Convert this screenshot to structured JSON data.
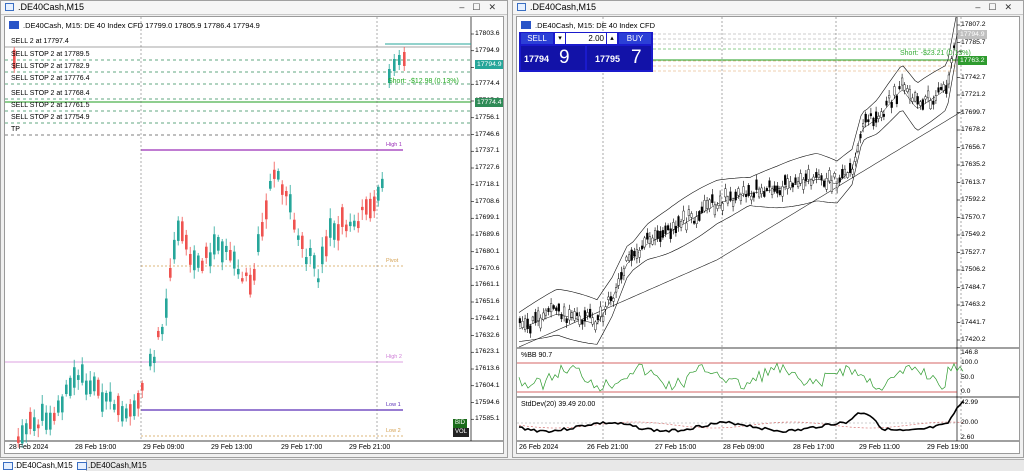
{
  "left": {
    "title": ".DE40Cash,M15",
    "header": ".DE40Cash, M15:  DE 40 Index CFD   17799.0 17805.9 17786.4 17794.9",
    "levels": [
      "SELL 2 at 17797.4",
      "SELL STOP 2 at 17789.5",
      "SELL STOP 2 at 17782.9",
      "SELL STOP 2 at 17776.4",
      "SELL STOP 2 at 17768.4",
      "SELL STOP 2 at 17761.5",
      "SELL STOP 2 at 17754.9",
      "TP"
    ],
    "prices": [
      "17803.6",
      "17794.9",
      "17784.6",
      "17774.4",
      "17765.6",
      "17756.1",
      "17746.6",
      "17737.1",
      "17727.6",
      "17718.1",
      "17708.6",
      "17699.1",
      "17689.6",
      "17680.1",
      "17670.6",
      "17661.1",
      "17651.6",
      "17642.1",
      "17632.6",
      "17623.1",
      "17613.6",
      "17604.1",
      "17594.6",
      "17585.1"
    ],
    "current_price": "17794.9",
    "position_price": "17774.4",
    "short_text": "Short: -$12.98 (0.13%)",
    "dates": [
      "28 Feb 2024",
      "28 Feb 19:00",
      "29 Feb 09:00",
      "29 Feb 13:00",
      "29 Feb 17:00",
      "29 Feb 21:00"
    ],
    "pivot_labels": [
      "High 1",
      "Pivot",
      "High 2",
      "Low 1",
      "Low 2"
    ],
    "chip_top": "BID",
    "chip_bottom": "VOL",
    "colors": {
      "bull": "#26a69a",
      "bear": "#ef5350"
    }
  },
  "right": {
    "title": ".DE40Cash,M15",
    "header": ".DE40Cash, M15:  DE 40 Index CFD",
    "trade": {
      "sell_label": "SELL",
      "buy_label": "BUY",
      "lots": "2.00",
      "sell_price_main": "17794",
      "sell_price_big": "9",
      "buy_price_main": "17795",
      "buy_price_big": "7"
    },
    "prices": [
      "17807.2",
      "17785.7",
      "17764.2",
      "17742.7",
      "17721.2",
      "17699.7",
      "17678.2",
      "17656.7",
      "17635.2",
      "17613.7",
      "17592.2",
      "17570.7",
      "17549.2",
      "17527.7",
      "17506.2",
      "17484.7",
      "17463.2",
      "17441.7",
      "17420.2"
    ],
    "tag_current": "17794.9",
    "tag_pos": "17763.2",
    "short_text": "Short: -$23.21 (0.13%)",
    "pctb_label": "%BB 90.7",
    "pctb_scale": [
      "146.8",
      "100.0",
      "50.0",
      "0.0"
    ],
    "stddev_label": "StdDev(20) 39.49 20.00",
    "stddev_scale": [
      "42.99",
      "20.00",
      "2.60"
    ],
    "dates": [
      "26 Feb 2024",
      "26 Feb 21:00",
      "27 Feb 15:00",
      "28 Feb 09:00",
      "28 Feb 17:00",
      "29 Feb 11:00",
      "29 Feb 19:00"
    ]
  },
  "tabs": [
    ".DE40Cash,M15",
    ".DE40Cash,M15"
  ]
}
